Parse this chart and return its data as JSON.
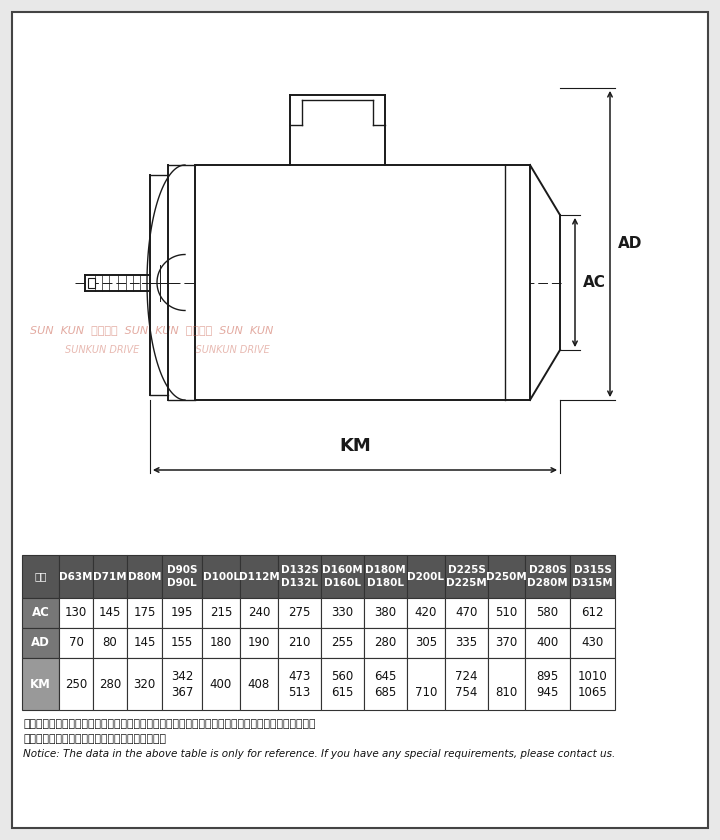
{
  "bg_color": "#e8e8e8",
  "inner_bg": "#ffffff",
  "watermark_color_red": "#d9786a",
  "watermark_color_blue": "#7aaad0",
  "table_header_bg": "#555555",
  "table_header_fg": "#ffffff",
  "table_row_ac_bg": "#777777",
  "table_row_ad_bg": "#777777",
  "table_row_km_bg": "#999999",
  "col_headers": [
    "型号",
    "D63M",
    "D71M",
    "D80M",
    "D90S\nD90L",
    "D100L",
    "D112M",
    "D132S\nD132L",
    "D160M\nD160L",
    "D180M\nD180L",
    "D200L",
    "D225S\nD225M",
    "D250M",
    "D280S\nD280M",
    "D315S\nD315M"
  ],
  "row_AC": [
    "AC",
    "130",
    "145",
    "175",
    "195",
    "215",
    "240",
    "275",
    "330",
    "380",
    "420",
    "470",
    "510",
    "580",
    "612"
  ],
  "row_AD": [
    "AD",
    "70",
    "80",
    "145",
    "155",
    "180",
    "190",
    "210",
    "255",
    "280",
    "305",
    "335",
    "370",
    "400",
    "430"
  ],
  "row_KM_top": [
    "KM",
    "250",
    "280",
    "320",
    "342",
    "400",
    "408",
    "473",
    "560",
    "645",
    "",
    "724",
    "",
    "895",
    "1010"
  ],
  "row_KM_bot": [
    "",
    "",
    "",
    "",
    "367",
    "",
    "",
    "513",
    "615",
    "685",
    "710",
    "754",
    "810",
    "945",
    "1065"
  ],
  "note_zh1": "注：上表中的电机尺寸为部分铁芯长度电机的参考尺寸，具体尺寸根据铁芯长度与联接法兰尺寸确定，",
  "note_zh2": "因空间限制对电机尺寸有要求时请向我公司咨询。",
  "note_en": "Notice: The data in the above table is only for reference. If you have any special requirements, please contact us."
}
